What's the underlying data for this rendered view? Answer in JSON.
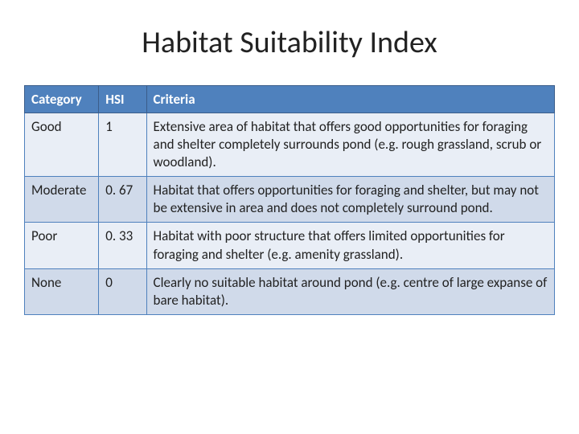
{
  "title": "Habitat Suitability Index",
  "table": {
    "columns": [
      "Category",
      "HSI",
      "Criteria"
    ],
    "rows": [
      {
        "category": "Good",
        "hsi": "1",
        "criteria": "Extensive area of habitat that offers good opportunities for foraging and shelter completely surrounds pond (e.g. rough grassland, scrub or woodland)."
      },
      {
        "category": "Moderate",
        "hsi": "0. 67",
        "criteria": "Habitat that offers opportunities for foraging and shelter, but may not be extensive in area and does not completely surround pond."
      },
      {
        "category": "Poor",
        "hsi": "0. 33",
        "criteria": "Habitat with poor structure that offers limited opportunities for foraging and shelter (e.g. amenity grassland)."
      },
      {
        "category": "None",
        "hsi": "0",
        "criteria": "Clearly no suitable habitat around pond (e.g. centre of large expanse of bare habitat)."
      }
    ],
    "header_bg": "#4f81bd",
    "header_text_color": "#ffffff",
    "row_odd_bg": "#e9eef6",
    "row_even_bg": "#d0daea",
    "border_color": "#4f81bd",
    "col_widths": [
      "14%",
      "9%",
      "77%"
    ],
    "fontsize": 17
  },
  "title_fontsize": 38,
  "title_color": "#222222",
  "background_color": "#ffffff"
}
